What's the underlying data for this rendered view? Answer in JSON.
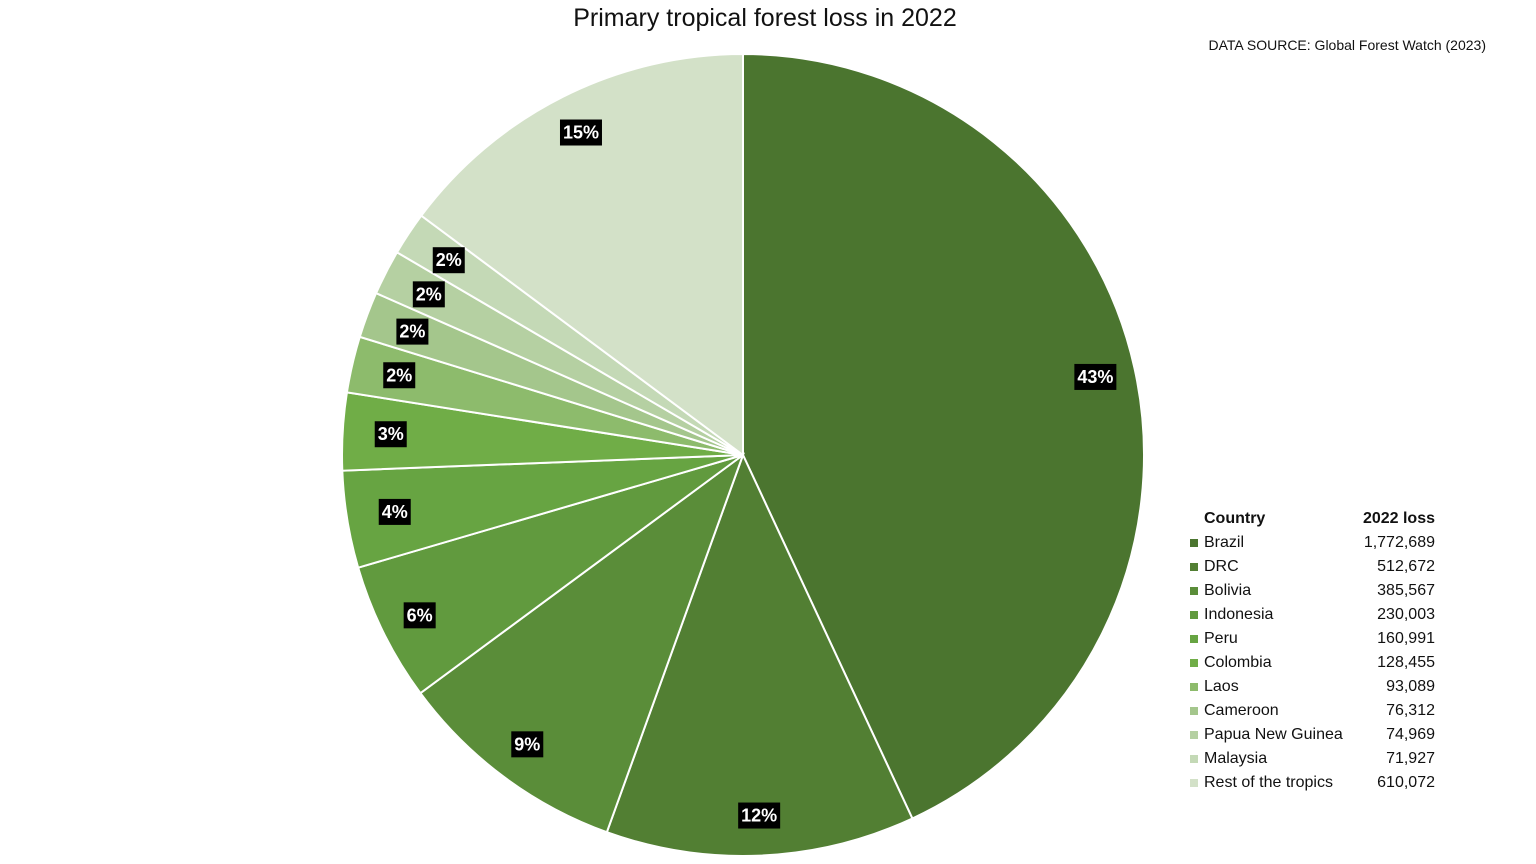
{
  "chart_data": {
    "type": "pie",
    "title": "Primary tropical forest loss in 2022",
    "source": "DATA SOURCE: Global Forest Watch (2023)",
    "legend_header": {
      "name": "Country",
      "value": "2022 loss"
    },
    "legend_position": "right-bottom",
    "start_angle_deg": 0,
    "direction": "clockwise",
    "slices": [
      {
        "label": "Brazil",
        "value": 1772689,
        "value_text": "1,772,689",
        "pct_label": "43%",
        "color": "#4b752f"
      },
      {
        "label": "DRC",
        "value": 512672,
        "value_text": "512,672",
        "pct_label": "12%",
        "color": "#527f33"
      },
      {
        "label": "Bolivia",
        "value": 385567,
        "value_text": "385,567",
        "pct_label": "9%",
        "color": "#5a8d39"
      },
      {
        "label": "Indonesia",
        "value": 230003,
        "value_text": "230,003",
        "pct_label": "6%",
        "color": "#619a3e"
      },
      {
        "label": "Peru",
        "value": 160991,
        "value_text": "160,991",
        "pct_label": "4%",
        "color": "#67a442"
      },
      {
        "label": "Colombia",
        "value": 128455,
        "value_text": "128,455",
        "pct_label": "3%",
        "color": "#70ad47"
      },
      {
        "label": "Laos",
        "value": 93089,
        "value_text": "93,089",
        "pct_label": "2%",
        "color": "#8dbb6c"
      },
      {
        "label": "Cameroon",
        "value": 76312,
        "value_text": "76,312",
        "pct_label": "2%",
        "color": "#a4c68c"
      },
      {
        "label": "Papua New Guinea",
        "value": 74969,
        "value_text": "74,969",
        "pct_label": "2%",
        "color": "#b5d0a2"
      },
      {
        "label": "Malaysia",
        "value": 71927,
        "value_text": "71,927",
        "pct_label": "2%",
        "color": "#c4d9b6"
      },
      {
        "label": "Rest of the tropics",
        "value": 610072,
        "value_text": "610,072",
        "pct_label": "15%",
        "color": "#d3e1c8"
      }
    ]
  }
}
